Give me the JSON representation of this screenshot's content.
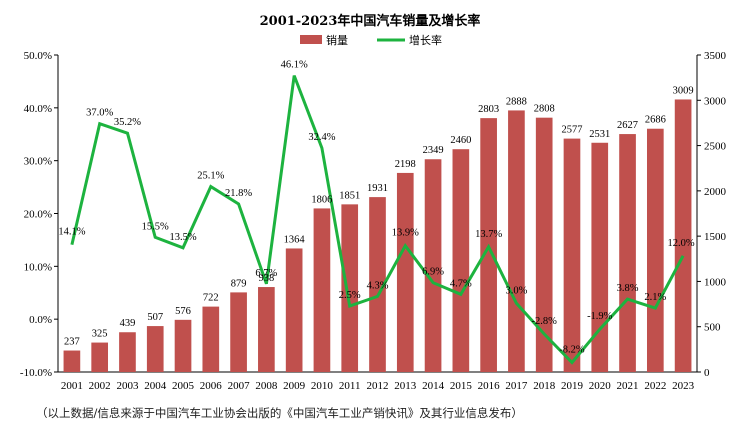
{
  "chart_data": {
    "type": "bar+line",
    "title": "2001-2023年中国汽车销量及增长率",
    "categories": [
      "2001",
      "2002",
      "2003",
      "2004",
      "2005",
      "2006",
      "2007",
      "2008",
      "2009",
      "2010",
      "2011",
      "2012",
      "2013",
      "2014",
      "2015",
      "2016",
      "2017",
      "2018",
      "2019",
      "2020",
      "2021",
      "2022",
      "2023"
    ],
    "series": [
      {
        "name": "销量",
        "type": "bar",
        "axis": "right",
        "color": "#c0504d",
        "values": [
          237,
          325,
          439,
          507,
          576,
          722,
          879,
          938,
          1364,
          1806,
          1851,
          1931,
          2198,
          2349,
          2460,
          2803,
          2888,
          2808,
          2577,
          2531,
          2627,
          2686,
          3009
        ]
      },
      {
        "name": "增长率",
        "type": "line",
        "axis": "left",
        "color": "#1db33f",
        "values": [
          14.1,
          37.0,
          35.2,
          15.5,
          13.5,
          25.1,
          21.8,
          6.7,
          46.1,
          32.4,
          2.5,
          4.3,
          13.9,
          6.9,
          4.7,
          13.7,
          3.0,
          -2.8,
          -8.2,
          -1.9,
          3.8,
          2.1,
          12.0
        ],
        "labels": [
          "14.1%",
          "37.0%",
          "35.2%",
          "15.5%",
          "13.5%",
          "25.1%",
          "21.8%",
          "6.7%",
          "46.1%",
          "32.4%",
          "2.5%",
          "4.3%",
          "13.9%",
          "6.9%",
          "4.7%",
          "13.7%",
          "3.0%",
          "-2.8%",
          "-8.2%",
          "-1.9%",
          "3.8%",
          "2.1%",
          "12.0%"
        ]
      }
    ],
    "y_left": {
      "min": -10,
      "max": 50,
      "step": 10,
      "tick_labels": [
        "-10.0%",
        "0.0%",
        "10.0%",
        "20.0%",
        "30.0%",
        "40.0%",
        "50.0%"
      ]
    },
    "y_right": {
      "min": 0,
      "max": 3500,
      "step": 500,
      "tick_labels": [
        "0",
        "500",
        "1000",
        "1500",
        "2000",
        "2500",
        "3000",
        "3500"
      ]
    },
    "legend": {
      "position": "top",
      "items": [
        "销量",
        "增长率"
      ]
    },
    "grid": false
  },
  "note": "（以上数据/信息来源于中国汽车工业协会出版的《中国汽车工业产销快讯》及其行业信息发布）"
}
